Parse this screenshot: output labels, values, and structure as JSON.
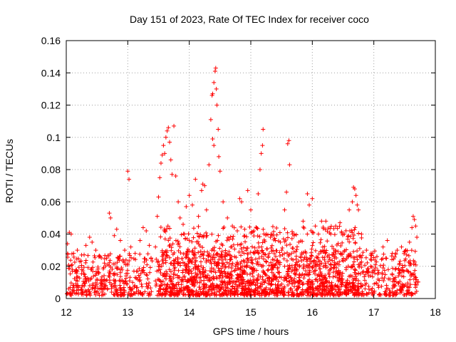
{
  "chart_data": {
    "type": "scatter",
    "title": "Day 151 of 2023, Rate Of TEC Index for receiver coco",
    "xlabel": "GPS time / hours",
    "ylabel": "ROTI / TECUs",
    "xlim": [
      12,
      18
    ],
    "ylim": [
      0,
      0.16
    ],
    "xticks": [
      12,
      13,
      14,
      15,
      16,
      17,
      18
    ],
    "xtick_labels": [
      "12",
      "13",
      "14",
      "15",
      "16",
      "17",
      "18"
    ],
    "yticks": [
      0,
      0.02,
      0.04,
      0.06,
      0.08,
      0.1,
      0.12,
      0.14,
      0.16
    ],
    "ytick_labels": [
      "0",
      "0.02",
      "0.04",
      "0.06",
      "0.08",
      "0.1",
      "0.12",
      "0.14",
      "0.16"
    ],
    "grid": true,
    "marker": "+",
    "series_color": "#ff0000",
    "series": [
      {
        "name": "ROTI",
        "points": [
          [
            12.02,
            0.034
          ],
          [
            12.05,
            0.041
          ],
          [
            12.08,
            0.04
          ],
          [
            12.12,
            0.028
          ],
          [
            12.18,
            0.03
          ],
          [
            12.25,
            0.027
          ],
          [
            12.32,
            0.033
          ],
          [
            12.38,
            0.038
          ],
          [
            12.42,
            0.035
          ],
          [
            12.48,
            0.03
          ],
          [
            12.55,
            0.026
          ],
          [
            12.62,
            0.022
          ],
          [
            12.7,
            0.053
          ],
          [
            12.72,
            0.05
          ],
          [
            12.78,
            0.039
          ],
          [
            12.82,
            0.043
          ],
          [
            12.88,
            0.036
          ],
          [
            12.95,
            0.03
          ],
          [
            13.0,
            0.079
          ],
          [
            13.02,
            0.074
          ],
          [
            13.05,
            0.032
          ],
          [
            13.12,
            0.028
          ],
          [
            13.2,
            0.036
          ],
          [
            13.25,
            0.044
          ],
          [
            13.3,
            0.042
          ],
          [
            13.35,
            0.033
          ],
          [
            13.45,
            0.032
          ],
          [
            13.48,
            0.051
          ],
          [
            13.5,
            0.063
          ],
          [
            13.52,
            0.075
          ],
          [
            13.54,
            0.084
          ],
          [
            13.56,
            0.089
          ],
          [
            13.58,
            0.095
          ],
          [
            13.6,
            0.09
          ],
          [
            13.62,
            0.1
          ],
          [
            13.64,
            0.104
          ],
          [
            13.66,
            0.106
          ],
          [
            13.68,
            0.097
          ],
          [
            13.7,
            0.086
          ],
          [
            13.72,
            0.077
          ],
          [
            13.75,
            0.107
          ],
          [
            13.78,
            0.076
          ],
          [
            13.82,
            0.06
          ],
          [
            13.85,
            0.05
          ],
          [
            13.9,
            0.046
          ],
          [
            13.95,
            0.057
          ],
          [
            14.0,
            0.064
          ],
          [
            14.05,
            0.058
          ],
          [
            14.1,
            0.074
          ],
          [
            14.15,
            0.051
          ],
          [
            14.2,
            0.067
          ],
          [
            14.22,
            0.071
          ],
          [
            14.25,
            0.07
          ],
          [
            14.28,
            0.055
          ],
          [
            14.32,
            0.083
          ],
          [
            14.35,
            0.111
          ],
          [
            14.37,
            0.126
          ],
          [
            14.38,
            0.127
          ],
          [
            14.4,
            0.134
          ],
          [
            14.42,
            0.141
          ],
          [
            14.43,
            0.143
          ],
          [
            14.44,
            0.13
          ],
          [
            14.45,
            0.12
          ],
          [
            14.47,
            0.105
          ],
          [
            14.48,
            0.088
          ],
          [
            14.5,
            0.079
          ],
          [
            14.38,
            0.099
          ],
          [
            14.4,
            0.095
          ],
          [
            14.55,
            0.06
          ],
          [
            14.62,
            0.05
          ],
          [
            14.7,
            0.045
          ],
          [
            14.78,
            0.042
          ],
          [
            14.82,
            0.062
          ],
          [
            14.85,
            0.06
          ],
          [
            14.9,
            0.043
          ],
          [
            14.95,
            0.067
          ],
          [
            15.0,
            0.055
          ],
          [
            15.05,
            0.042
          ],
          [
            15.12,
            0.065
          ],
          [
            15.15,
            0.08
          ],
          [
            15.17,
            0.09
          ],
          [
            15.19,
            0.095
          ],
          [
            15.2,
            0.105
          ],
          [
            15.25,
            0.04
          ],
          [
            15.32,
            0.038
          ],
          [
            15.4,
            0.036
          ],
          [
            15.48,
            0.035
          ],
          [
            15.55,
            0.055
          ],
          [
            15.58,
            0.066
          ],
          [
            15.6,
            0.096
          ],
          [
            15.62,
            0.098
          ],
          [
            15.63,
            0.083
          ],
          [
            15.68,
            0.04
          ],
          [
            15.78,
            0.035
          ],
          [
            15.85,
            0.048
          ],
          [
            15.92,
            0.065
          ],
          [
            15.95,
            0.058
          ],
          [
            16.0,
            0.062
          ],
          [
            16.05,
            0.045
          ],
          [
            16.1,
            0.04
          ],
          [
            16.15,
            0.048
          ],
          [
            16.22,
            0.048
          ],
          [
            16.3,
            0.04
          ],
          [
            16.38,
            0.045
          ],
          [
            16.45,
            0.047
          ],
          [
            16.52,
            0.04
          ],
          [
            16.6,
            0.055
          ],
          [
            16.65,
            0.06
          ],
          [
            16.67,
            0.069
          ],
          [
            16.69,
            0.068
          ],
          [
            16.71,
            0.064
          ],
          [
            16.73,
            0.058
          ],
          [
            16.75,
            0.055
          ],
          [
            16.8,
            0.04
          ],
          [
            16.88,
            0.03
          ],
          [
            16.95,
            0.027
          ],
          [
            17.05,
            0.026
          ],
          [
            17.15,
            0.032
          ],
          [
            17.22,
            0.036
          ],
          [
            17.3,
            0.028
          ],
          [
            17.38,
            0.03
          ],
          [
            17.45,
            0.032
          ],
          [
            17.52,
            0.03
          ],
          [
            17.58,
            0.035
          ],
          [
            17.62,
            0.044
          ],
          [
            17.64,
            0.051
          ],
          [
            17.66,
            0.049
          ],
          [
            17.68,
            0.045
          ],
          [
            17.7,
            0.038
          ],
          [
            12.1,
            0.018
          ],
          [
            12.3,
            0.015
          ],
          [
            12.5,
            0.012
          ],
          [
            12.7,
            0.016
          ],
          [
            12.9,
            0.019
          ],
          [
            13.1,
            0.017
          ],
          [
            13.3,
            0.015
          ],
          [
            13.55,
            0.02
          ],
          [
            13.75,
            0.022
          ],
          [
            13.95,
            0.018
          ],
          [
            14.15,
            0.02
          ],
          [
            14.35,
            0.024
          ],
          [
            14.55,
            0.022
          ],
          [
            14.75,
            0.02
          ],
          [
            14.95,
            0.025
          ],
          [
            15.15,
            0.021
          ],
          [
            15.35,
            0.019
          ],
          [
            15.55,
            0.02
          ],
          [
            15.75,
            0.018
          ],
          [
            15.95,
            0.02
          ],
          [
            16.15,
            0.022
          ],
          [
            16.35,
            0.019
          ],
          [
            16.55,
            0.018
          ],
          [
            16.75,
            0.021
          ],
          [
            16.95,
            0.02
          ],
          [
            17.15,
            0.019
          ],
          [
            17.35,
            0.018
          ],
          [
            17.55,
            0.017
          ]
        ],
        "density_bands": [
          {
            "x_range": [
              12.0,
              13.4
            ],
            "y_range": [
              0.0,
              0.028
            ]
          },
          {
            "x_range": [
              13.45,
              17.72
            ],
            "y_range": [
              0.0,
              0.03
            ]
          },
          {
            "x_range": [
              13.5,
              16.8
            ],
            "y_range": [
              0.0,
              0.045
            ]
          }
        ]
      }
    ]
  }
}
